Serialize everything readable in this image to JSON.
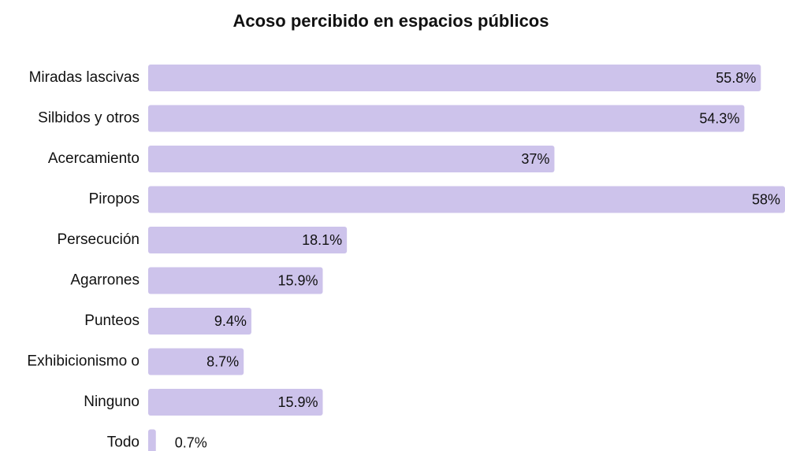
{
  "chart_data": {
    "type": "barh",
    "title": "Acoso percibido en espacios públicos",
    "categories": [
      "Miradas lascivas",
      "Silbidos y otros",
      "Acercamiento",
      "Piropos",
      "Persecución",
      "Agarrones",
      "Punteos",
      "Exhibicionismo o",
      "Ninguno",
      "Todo"
    ],
    "values": [
      55.8,
      54.3,
      37,
      58,
      18.1,
      15.9,
      9.4,
      8.7,
      15.9,
      0.7
    ],
    "value_labels": [
      "55.8%",
      "54.3%",
      "37%",
      "58%",
      "18.1%",
      "15.9%",
      "9.4%",
      "8.7%",
      "15.9%",
      "0.7%"
    ],
    "color": "#cdc3eb"
  }
}
